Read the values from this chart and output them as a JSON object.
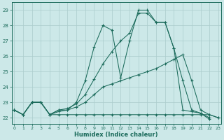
{
  "xlabel": "Humidex (Indice chaleur)",
  "background_color": "#cce8e8",
  "grid_color": "#aacccc",
  "line_color": "#1a6a5a",
  "x_ticks": [
    0,
    1,
    2,
    3,
    4,
    5,
    6,
    7,
    8,
    9,
    10,
    11,
    12,
    13,
    14,
    15,
    16,
    17,
    18,
    19,
    20,
    21,
    22,
    23
  ],
  "y_ticks": [
    22,
    23,
    24,
    25,
    26,
    27,
    28,
    29
  ],
  "xlim": [
    -0.3,
    23.3
  ],
  "ylim": [
    21.6,
    29.5
  ],
  "series1_x": [
    0,
    1,
    2,
    3,
    4,
    5,
    6,
    7,
    8,
    9,
    10,
    11,
    12,
    13,
    14,
    15,
    16,
    17,
    18,
    19,
    20,
    21,
    22
  ],
  "series1_y": [
    22.5,
    22.2,
    23.0,
    23.0,
    22.2,
    22.5,
    22.5,
    23.0,
    24.4,
    26.6,
    28.0,
    27.7,
    24.6,
    27.0,
    29.0,
    29.0,
    28.2,
    28.2,
    26.5,
    22.5,
    22.4,
    22.3,
    21.9
  ],
  "series2_x": [
    0,
    1,
    2,
    3,
    4,
    5,
    6,
    7,
    8,
    9,
    10,
    11,
    12,
    13,
    14,
    15,
    16,
    17,
    18,
    19,
    20,
    21,
    22,
    23
  ],
  "series2_y": [
    22.5,
    22.2,
    23.0,
    23.0,
    22.2,
    22.4,
    22.5,
    22.7,
    23.0,
    23.5,
    24.0,
    24.2,
    24.4,
    24.6,
    24.8,
    25.0,
    25.2,
    25.5,
    25.8,
    26.1,
    24.4,
    22.5,
    22.2,
    22.0
  ],
  "series3_x": [
    0,
    1,
    2,
    3,
    4,
    5,
    6,
    7,
    8,
    9,
    10,
    11,
    12,
    13,
    14,
    15,
    16,
    17,
    18,
    19,
    20,
    21,
    22,
    23
  ],
  "series3_y": [
    22.5,
    22.2,
    23.0,
    23.0,
    22.2,
    22.2,
    22.2,
    22.2,
    22.2,
    22.2,
    22.2,
    22.2,
    22.2,
    22.2,
    22.2,
    22.2,
    22.2,
    22.2,
    22.2,
    22.2,
    22.2,
    22.2,
    22.2,
    22.0
  ],
  "series4_x": [
    0,
    1,
    2,
    3,
    4,
    5,
    6,
    7,
    8,
    9,
    10,
    11,
    12,
    13,
    14,
    15,
    16,
    17,
    18,
    19,
    20,
    21,
    22
  ],
  "series4_y": [
    22.5,
    22.2,
    23.0,
    23.0,
    22.2,
    22.5,
    22.6,
    22.9,
    23.5,
    24.5,
    25.5,
    26.3,
    27.0,
    27.5,
    28.8,
    28.8,
    28.2,
    28.2,
    26.5,
    24.4,
    22.5,
    22.3,
    22.0
  ]
}
